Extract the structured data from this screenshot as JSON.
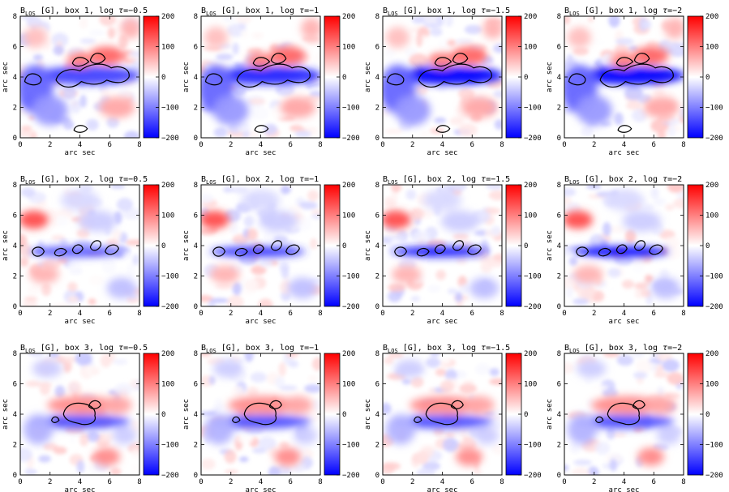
{
  "figure": {
    "symbol_label": "B",
    "symbol_sub": "LOS",
    "unit": "[G]",
    "title_sep": ", ",
    "box_word": "box",
    "tau_prefix": "log",
    "tau_symbol": "τ",
    "tau_eq": "=",
    "colorbar": {
      "range": [
        -200,
        200
      ],
      "ticks": [
        "200",
        "100",
        "0",
        "−100",
        "−200"
      ],
      "colors": [
        "#0000ff",
        "#ffffff",
        "#ff0000"
      ]
    },
    "contour_color": "#000000"
  },
  "chart_data": [
    {
      "type": "heatmap",
      "box": "1",
      "tau": "−0.5",
      "xlabel": "arc sec",
      "ylabel": "arc sec",
      "xlim": [
        0,
        8
      ],
      "ylim": [
        0,
        8
      ],
      "xticks": [
        "0",
        "2",
        "4",
        "6",
        "8"
      ],
      "yticks": [
        "0",
        "2",
        "4",
        "6",
        "8"
      ],
      "zlim": [
        -200,
        200
      ]
    },
    {
      "type": "heatmap",
      "box": "1",
      "tau": "−1",
      "xlabel": "arc sec",
      "ylabel": "arc sec",
      "xlim": [
        0,
        8
      ],
      "ylim": [
        0,
        8
      ],
      "xticks": [
        "0",
        "2",
        "4",
        "6",
        "8"
      ],
      "yticks": [
        "0",
        "2",
        "4",
        "6",
        "8"
      ],
      "zlim": [
        -200,
        200
      ]
    },
    {
      "type": "heatmap",
      "box": "1",
      "tau": "−1.5",
      "xlabel": "arc sec",
      "ylabel": "arc sec",
      "xlim": [
        0,
        8
      ],
      "ylim": [
        0,
        8
      ],
      "xticks": [
        "0",
        "2",
        "4",
        "6",
        "8"
      ],
      "yticks": [
        "0",
        "2",
        "4",
        "6",
        "8"
      ],
      "zlim": [
        -200,
        200
      ]
    },
    {
      "type": "heatmap",
      "box": "1",
      "tau": "−2",
      "xlabel": "arc sec",
      "ylabel": "arc sec",
      "xlim": [
        0,
        8
      ],
      "ylim": [
        0,
        8
      ],
      "xticks": [
        "0",
        "2",
        "4",
        "6",
        "8"
      ],
      "yticks": [
        "0",
        "2",
        "4",
        "6",
        "8"
      ],
      "zlim": [
        -200,
        200
      ]
    },
    {
      "type": "heatmap",
      "box": "2",
      "tau": "−0.5",
      "xlabel": "arc sec",
      "ylabel": "arc sec",
      "xlim": [
        0,
        8
      ],
      "ylim": [
        0,
        8
      ],
      "xticks": [
        "0",
        "2",
        "4",
        "6",
        "8"
      ],
      "yticks": [
        "0",
        "2",
        "4",
        "6",
        "8"
      ],
      "zlim": [
        -200,
        200
      ]
    },
    {
      "type": "heatmap",
      "box": "2",
      "tau": "−1",
      "xlabel": "arc sec",
      "ylabel": "arc sec",
      "xlim": [
        0,
        8
      ],
      "ylim": [
        0,
        8
      ],
      "xticks": [
        "0",
        "2",
        "4",
        "6",
        "8"
      ],
      "yticks": [
        "0",
        "2",
        "4",
        "6",
        "8"
      ],
      "zlim": [
        -200,
        200
      ]
    },
    {
      "type": "heatmap",
      "box": "2",
      "tau": "−1.5",
      "xlabel": "arc sec",
      "ylabel": "arc sec",
      "xlim": [
        0,
        8
      ],
      "ylim": [
        0,
        8
      ],
      "xticks": [
        "0",
        "2",
        "4",
        "6",
        "8"
      ],
      "yticks": [
        "0",
        "2",
        "4",
        "6",
        "8"
      ],
      "zlim": [
        -200,
        200
      ]
    },
    {
      "type": "heatmap",
      "box": "2",
      "tau": "−2",
      "xlabel": "arc sec",
      "ylabel": "arc sec",
      "xlim": [
        0,
        8
      ],
      "ylim": [
        0,
        8
      ],
      "xticks": [
        "0",
        "2",
        "4",
        "6",
        "8"
      ],
      "yticks": [
        "0",
        "2",
        "4",
        "6",
        "8"
      ],
      "zlim": [
        -200,
        200
      ]
    },
    {
      "type": "heatmap",
      "box": "3",
      "tau": "−0.5",
      "xlabel": "arc sec",
      "ylabel": "arc sec",
      "xlim": [
        0,
        8
      ],
      "ylim": [
        0,
        8
      ],
      "xticks": [
        "0",
        "2",
        "4",
        "6",
        "8"
      ],
      "yticks": [
        "0",
        "2",
        "4",
        "6",
        "8"
      ],
      "zlim": [
        -200,
        200
      ]
    },
    {
      "type": "heatmap",
      "box": "3",
      "tau": "−1",
      "xlabel": "arc sec",
      "ylabel": "arc sec",
      "xlim": [
        0,
        8
      ],
      "ylim": [
        0,
        8
      ],
      "xticks": [
        "0",
        "2",
        "4",
        "6",
        "8"
      ],
      "yticks": [
        "0",
        "2",
        "4",
        "6",
        "8"
      ],
      "zlim": [
        -200,
        200
      ]
    },
    {
      "type": "heatmap",
      "box": "3",
      "tau": "−1.5",
      "xlabel": "arc sec",
      "ylabel": "arc sec",
      "xlim": [
        0,
        8
      ],
      "ylim": [
        0,
        8
      ],
      "xticks": [
        "0",
        "2",
        "4",
        "6",
        "8"
      ],
      "yticks": [
        "0",
        "2",
        "4",
        "6",
        "8"
      ],
      "zlim": [
        -200,
        200
      ]
    },
    {
      "type": "heatmap",
      "box": "3",
      "tau": "−2",
      "xlabel": "arc sec",
      "ylabel": "arc sec",
      "xlim": [
        0,
        8
      ],
      "ylim": [
        0,
        8
      ],
      "xticks": [
        "0",
        "2",
        "4",
        "6",
        "8"
      ],
      "yticks": [
        "0",
        "2",
        "4",
        "6",
        "8"
      ],
      "zlim": [
        -200,
        200
      ]
    }
  ]
}
